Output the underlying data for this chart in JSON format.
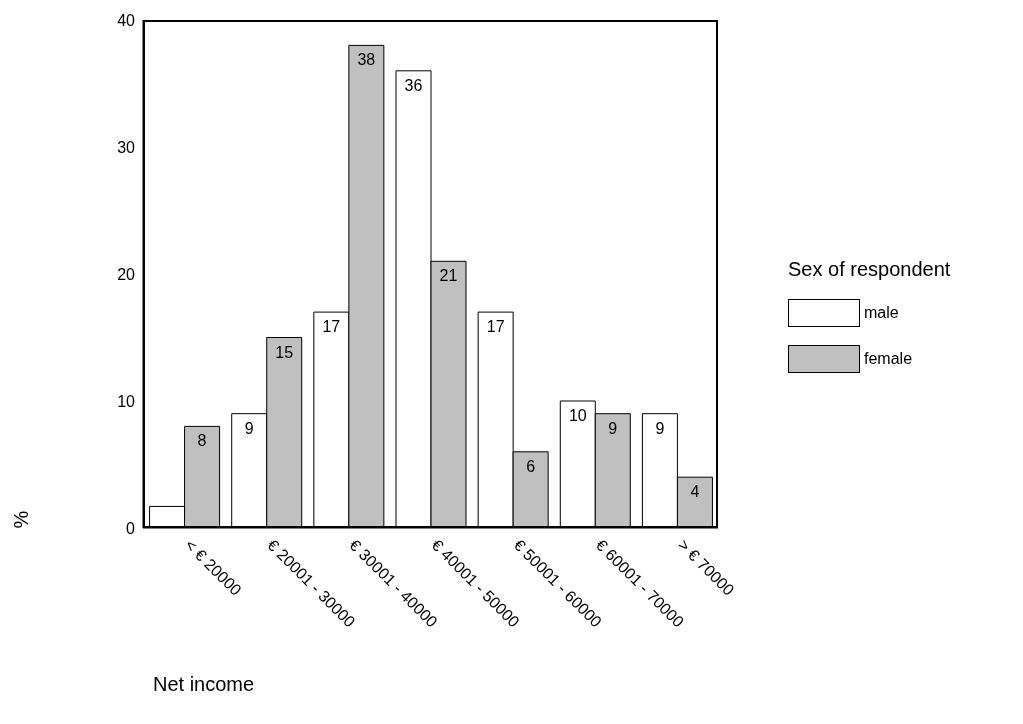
{
  "chart_data": {
    "type": "bar",
    "xlabel": "Net income",
    "ylabel": "%",
    "legend_title": "Sex of respondent",
    "categories": [
      "< € 20000",
      "€ 20001 - 30000",
      "€ 30001 - 40000",
      "€ 40001 - 50000",
      "€ 50001 - 60000",
      "€ 60001 - 70000",
      "> € 70000"
    ],
    "series": [
      {
        "name": "male",
        "color": "#ffffff",
        "values": [
          1.7,
          9,
          17,
          36,
          17,
          10,
          9
        ],
        "value_labels": [
          null,
          "9",
          "17",
          "36",
          "17",
          "10",
          "9"
        ]
      },
      {
        "name": "female",
        "color": "#c0c0c0",
        "values": [
          8,
          15,
          38,
          21,
          6,
          9,
          4
        ],
        "value_labels": [
          "8",
          "15",
          "38",
          "21",
          "6",
          "9",
          "4"
        ]
      }
    ],
    "ylim": [
      0,
      40
    ],
    "yticks": [
      0,
      10,
      20,
      30,
      40
    ],
    "grid": false,
    "legend": "right"
  }
}
